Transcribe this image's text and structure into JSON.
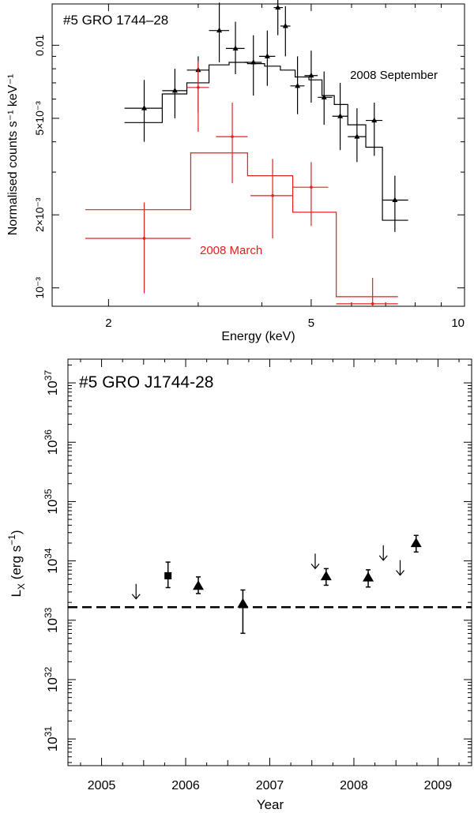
{
  "colors": {
    "sep": "#000000",
    "mar": "#e02020"
  },
  "chart_data": [
    {
      "type": "scatter",
      "title": "#5 GRO 1744–28",
      "xlabel": "Energy (keV)",
      "ylabel": "Normalised counts s⁻¹ keV⁻¹",
      "xscale": "log",
      "yscale": "log",
      "xlim": [
        1.55,
        10
      ],
      "ylim": [
        0.00084,
        0.0148
      ],
      "x_ticks": [
        {
          "v": 2,
          "label": "2"
        },
        {
          "v": 5,
          "label": "5"
        },
        {
          "v": 10,
          "label": "10"
        }
      ],
      "y_ticks": [
        {
          "v": 0.001,
          "label": "10⁻³"
        },
        {
          "v": 0.002,
          "label": "2×10⁻³"
        },
        {
          "v": 0.005,
          "label": "5×10⁻³"
        },
        {
          "v": 0.01,
          "label": "0.01"
        }
      ],
      "series": [
        {
          "name": "2008 September",
          "color_key": "sep",
          "points": [
            {
              "x": 2.35,
              "y": 0.0055,
              "xlo": 2.15,
              "xhi": 2.55,
              "ylo": 0.004,
              "yhi": 0.0072
            },
            {
              "x": 2.7,
              "y": 0.0065,
              "xlo": 2.55,
              "xhi": 2.85,
              "ylo": 0.005,
              "yhi": 0.008
            },
            {
              "x": 3.0,
              "y": 0.0079,
              "xlo": 2.85,
              "xhi": 3.15,
              "ylo": 0.0053,
              "yhi": 0.009
            },
            {
              "x": 3.3,
              "y": 0.0115,
              "xlo": 3.15,
              "xhi": 3.45,
              "ylo": 0.0085,
              "yhi": 0.015
            },
            {
              "x": 3.55,
              "y": 0.0097,
              "xlo": 3.4,
              "xhi": 3.7,
              "ylo": 0.0076,
              "yhi": 0.0125
            },
            {
              "x": 3.85,
              "y": 0.0085,
              "xlo": 3.7,
              "xhi": 4.0,
              "ylo": 0.0062,
              "yhi": 0.011
            },
            {
              "x": 4.1,
              "y": 0.009,
              "xlo": 3.95,
              "xhi": 4.25,
              "ylo": 0.0068,
              "yhi": 0.0115
            },
            {
              "x": 4.3,
              "y": 0.0143,
              "xlo": 4.22,
              "xhi": 4.4,
              "ylo": 0.011,
              "yhi": 0.016
            },
            {
              "x": 4.45,
              "y": 0.012,
              "xlo": 4.35,
              "xhi": 4.55,
              "ylo": 0.009,
              "yhi": 0.0145
            },
            {
              "x": 4.7,
              "y": 0.0068,
              "xlo": 4.55,
              "xhi": 4.85,
              "ylo": 0.0052,
              "yhi": 0.009
            },
            {
              "x": 5.0,
              "y": 0.0075,
              "xlo": 4.85,
              "xhi": 5.15,
              "ylo": 0.0058,
              "yhi": 0.0095
            },
            {
              "x": 5.3,
              "y": 0.0061,
              "xlo": 5.15,
              "xhi": 5.5,
              "ylo": 0.0047,
              "yhi": 0.0078
            },
            {
              "x": 5.7,
              "y": 0.0051,
              "xlo": 5.5,
              "xhi": 5.9,
              "ylo": 0.0037,
              "yhi": 0.007
            },
            {
              "x": 6.15,
              "y": 0.0042,
              "xlo": 5.9,
              "xhi": 6.4,
              "ylo": 0.0033,
              "yhi": 0.0055
            },
            {
              "x": 6.65,
              "y": 0.0049,
              "xlo": 6.4,
              "xhi": 6.9,
              "ylo": 0.0035,
              "yhi": 0.0058
            },
            {
              "x": 7.3,
              "y": 0.0023,
              "xlo": 6.9,
              "xhi": 7.75,
              "ylo": 0.0017,
              "yhi": 0.0029
            }
          ],
          "model_steps": [
            [
              2.15,
              2.55,
              0.0048
            ],
            [
              2.55,
              2.85,
              0.0063
            ],
            [
              2.85,
              3.15,
              0.007
            ],
            [
              3.15,
              3.45,
              0.0083
            ],
            [
              3.45,
              3.75,
              0.0085
            ],
            [
              3.75,
              4.05,
              0.0084
            ],
            [
              4.05,
              4.35,
              0.0082
            ],
            [
              4.35,
              4.65,
              0.0079
            ],
            [
              4.65,
              4.95,
              0.0074
            ],
            [
              4.95,
              5.25,
              0.0072
            ],
            [
              5.25,
              5.55,
              0.0062
            ],
            [
              5.55,
              5.9,
              0.0057
            ],
            [
              5.9,
              6.4,
              0.0047
            ],
            [
              6.4,
              6.9,
              0.0038
            ],
            [
              6.9,
              7.75,
              0.0019
            ]
          ]
        },
        {
          "name": "2008 March",
          "color_key": "mar",
          "points": [
            {
              "x": 2.35,
              "y": 0.0016,
              "xlo": 1.8,
              "xhi": 2.9,
              "ylo": 0.00095,
              "yhi": 0.00225
            },
            {
              "x": 3.0,
              "y": 0.0067,
              "xlo": 2.85,
              "xhi": 3.15,
              "ylo": 0.0044,
              "yhi": 0.0086
            },
            {
              "x": 3.5,
              "y": 0.0042,
              "xlo": 3.25,
              "xhi": 3.75,
              "ylo": 0.0027,
              "yhi": 0.0058
            },
            {
              "x": 4.2,
              "y": 0.0024,
              "xlo": 3.8,
              "xhi": 4.6,
              "ylo": 0.0016,
              "yhi": 0.0034
            },
            {
              "x": 5.0,
              "y": 0.0026,
              "xlo": 4.6,
              "xhi": 5.4,
              "ylo": 0.0018,
              "yhi": 0.0033
            },
            {
              "x": 6.6,
              "y": 0.00086,
              "xlo": 5.6,
              "xhi": 7.4,
              "ylo": 0.00084,
              "yhi": 0.0011
            }
          ],
          "model_steps": [
            [
              1.8,
              2.9,
              0.0021
            ],
            [
              2.9,
              3.75,
              0.0036
            ],
            [
              3.75,
              4.6,
              0.0029
            ],
            [
              4.6,
              5.6,
              0.00205
            ],
            [
              5.6,
              7.4,
              0.00092
            ]
          ]
        }
      ],
      "annotations": [
        {
          "text": "2008 September",
          "color_key": "sep"
        },
        {
          "text": "2008 March",
          "color_key": "mar"
        }
      ]
    },
    {
      "type": "scatter",
      "title": "#5 GRO J1744-28",
      "xlabel": "Year",
      "ylabel_main": "L",
      "ylabel_sub": "X",
      "ylabel_rest": " (erg s",
      "ylabel_sup": "−1",
      "ylabel_end": ")",
      "yscale": "log",
      "xlim": [
        2004.6,
        2009.4
      ],
      "ylim_log": [
        30.55,
        37.4
      ],
      "x_ticks": [
        2005,
        2006,
        2007,
        2008,
        2009
      ],
      "y_ticks": [
        {
          "exp": 31,
          "base": "10",
          "sup": "31"
        },
        {
          "exp": 32,
          "base": "10",
          "sup": "32"
        },
        {
          "exp": 33,
          "base": "10",
          "sup": "33"
        },
        {
          "exp": 34,
          "base": "10",
          "sup": "34"
        },
        {
          "exp": 35,
          "base": "10",
          "sup": "35"
        },
        {
          "exp": 36,
          "base": "10",
          "sup": "36"
        },
        {
          "exp": 37,
          "base": "10",
          "sup": "37"
        }
      ],
      "threshold_log_lx": 33.22,
      "detections": [
        {
          "year": 2005.79,
          "log_lx": 33.75,
          "log_lo": 33.55,
          "log_hi": 33.98,
          "marker": "square"
        },
        {
          "year": 2006.15,
          "log_lx": 33.58,
          "log_lo": 33.45,
          "log_hi": 33.73,
          "marker": "triangle"
        },
        {
          "year": 2006.68,
          "log_lx": 33.28,
          "log_lo": 32.78,
          "log_hi": 33.51,
          "marker": "triangle"
        },
        {
          "year": 2007.67,
          "log_lx": 33.74,
          "log_lo": 33.59,
          "log_hi": 33.87,
          "marker": "triangle"
        },
        {
          "year": 2008.17,
          "log_lx": 33.72,
          "log_lo": 33.56,
          "log_hi": 33.85,
          "marker": "triangle"
        },
        {
          "year": 2008.74,
          "log_lx": 34.3,
          "log_lo": 34.15,
          "log_hi": 34.43,
          "marker": "triangle"
        }
      ],
      "upper_limits": [
        {
          "year": 2005.41,
          "log_lx": 33.48
        },
        {
          "year": 2007.54,
          "log_lx": 33.99
        },
        {
          "year": 2008.35,
          "log_lx": 34.13
        },
        {
          "year": 2008.55,
          "log_lx": 33.88
        }
      ]
    }
  ]
}
